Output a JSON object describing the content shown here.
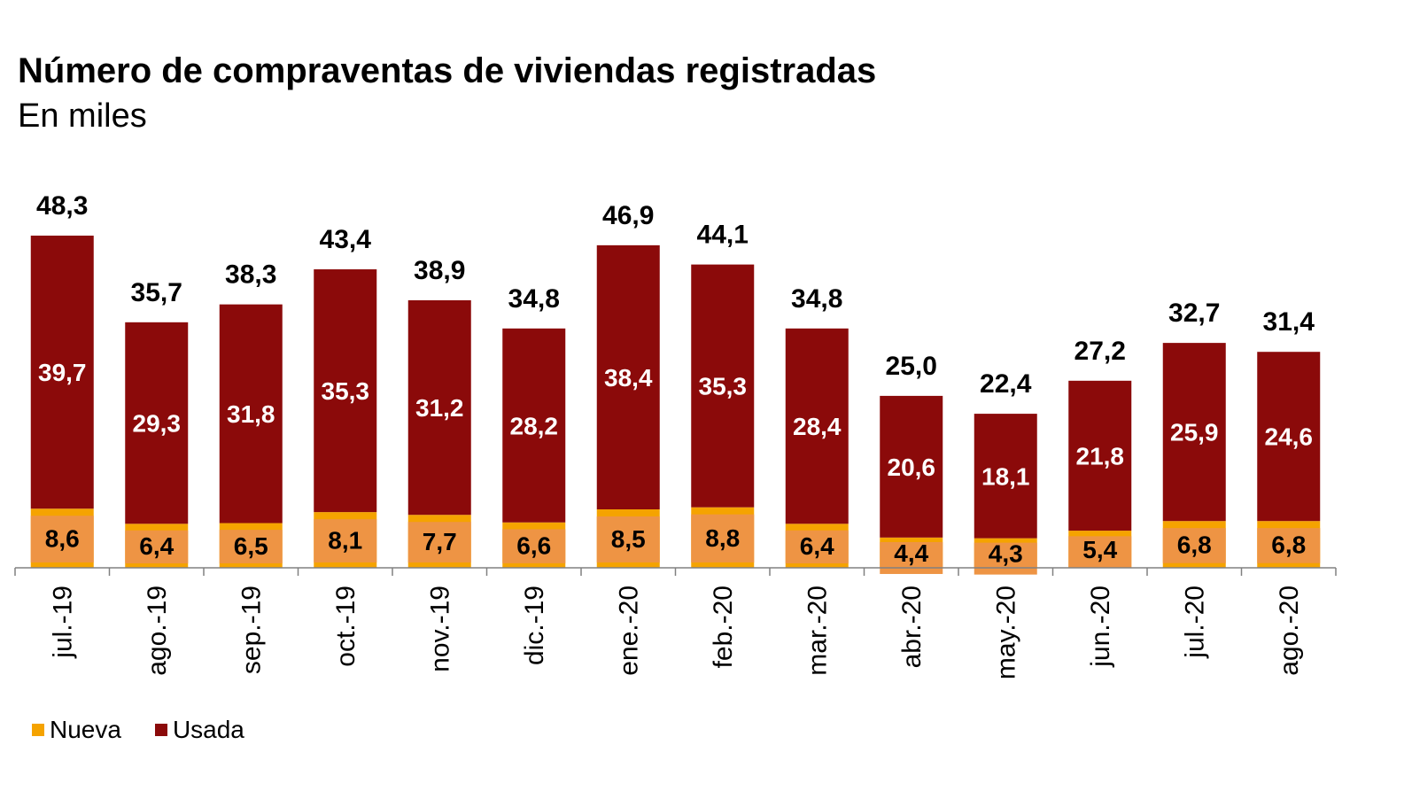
{
  "chart_data": {
    "type": "bar",
    "stacked": true,
    "title": "Número de compraventas de viviendas registradas",
    "subtitle": "En miles",
    "xlabel": "",
    "ylabel": "",
    "ylim": [
      0,
      50
    ],
    "grid": false,
    "legend_position": "bottom-left",
    "categories": [
      "jul.-19",
      "ago.-19",
      "sep.-19",
      "oct.-19",
      "nov.-19",
      "dic.-19",
      "ene.-20",
      "feb.-20",
      "mar.-20",
      "abr.-20",
      "may.-20",
      "jun.-20",
      "jul.-20",
      "ago.-20"
    ],
    "series": [
      {
        "name": "Nueva",
        "color": "#F5A300",
        "label_bg": "#EE9444",
        "values": [
          8.6,
          6.4,
          6.5,
          8.1,
          7.7,
          6.6,
          8.5,
          8.8,
          6.4,
          4.4,
          4.3,
          5.4,
          6.8,
          6.8
        ],
        "labels": [
          "8,6",
          "6,4",
          "6,5",
          "8,1",
          "7,7",
          "6,6",
          "8,5",
          "8,8",
          "6,4",
          "4,4",
          "4,3",
          "5,4",
          "6,8",
          "6,8"
        ]
      },
      {
        "name": "Usada",
        "color": "#8B0A0A",
        "values": [
          39.7,
          29.3,
          31.8,
          35.3,
          31.2,
          28.2,
          38.4,
          35.3,
          28.4,
          20.6,
          18.1,
          21.8,
          25.9,
          24.6
        ],
        "labels": [
          "39,7",
          "29,3",
          "31,8",
          "35,3",
          "31,2",
          "28,2",
          "38,4",
          "35,3",
          "28,4",
          "20,6",
          "18,1",
          "21,8",
          "25,9",
          "24,6"
        ]
      }
    ],
    "totals": [
      48.3,
      35.7,
      38.3,
      43.4,
      38.9,
      34.8,
      46.9,
      44.1,
      34.8,
      25.0,
      22.4,
      27.2,
      32.7,
      31.4
    ],
    "total_labels": [
      "48,3",
      "35,7",
      "38,3",
      "43,4",
      "38,9",
      "34,8",
      "46,9",
      "44,1",
      "34,8",
      "25,0",
      "22,4",
      "27,2",
      "32,7",
      "31,4"
    ]
  },
  "legend": {
    "items": [
      {
        "label": "Nueva",
        "color": "#F5A300"
      },
      {
        "label": "Usada",
        "color": "#8B0A0A"
      }
    ]
  }
}
